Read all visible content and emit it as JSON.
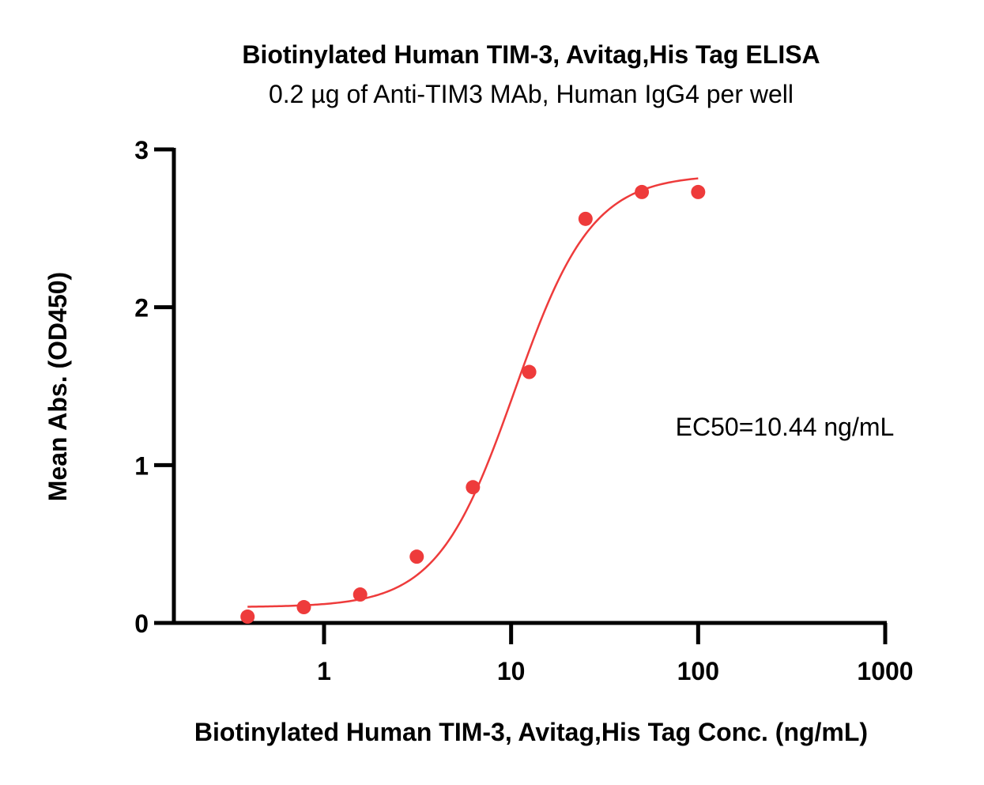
{
  "chart_data": {
    "type": "scatter",
    "title": "Biotinylated Human TIM-3, Avitag,His Tag ELISA",
    "subtitle": "0.2 µg of Anti-TIM3 MAb, Human IgG4 per well",
    "xlabel": "Biotinylated Human TIM-3, Avitag,His Tag Conc. (ng/mL)",
    "ylabel": "Mean Abs. (OD450)",
    "x_scale": "log",
    "xlim": [
      0.17,
      1000
    ],
    "ylim": [
      0,
      3
    ],
    "x_ticks": [
      1,
      10,
      100,
      1000
    ],
    "x_tick_labels": [
      "1",
      "10",
      "100",
      "1000"
    ],
    "y_ticks": [
      0,
      1,
      2,
      3
    ],
    "y_tick_labels": [
      "0",
      "1",
      "2",
      "3"
    ],
    "grid": false,
    "color": "#ee3b3b",
    "series": [
      {
        "x": [
          0.39,
          0.78,
          1.56,
          3.13,
          6.25,
          12.5,
          25,
          50,
          100
        ],
        "y": [
          0.04,
          0.1,
          0.18,
          0.42,
          0.86,
          1.59,
          2.56,
          2.73,
          2.73
        ]
      }
    ],
    "fit": {
      "bottom": 0.1,
      "top": 2.84,
      "ec50": 10.44,
      "hill": 2.1,
      "x_range": [
        0.39,
        100
      ]
    },
    "annotation": "EC50=10.44 ng/mL"
  }
}
